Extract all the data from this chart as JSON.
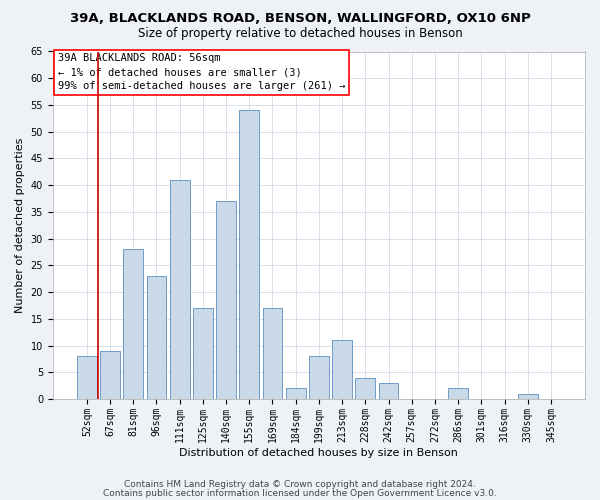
{
  "title1": "39A, BLACKLANDS ROAD, BENSON, WALLINGFORD, OX10 6NP",
  "title2": "Size of property relative to detached houses in Benson",
  "xlabel": "Distribution of detached houses by size in Benson",
  "ylabel": "Number of detached properties",
  "categories": [
    "52sqm",
    "67sqm",
    "81sqm",
    "96sqm",
    "111sqm",
    "125sqm",
    "140sqm",
    "155sqm",
    "169sqm",
    "184sqm",
    "199sqm",
    "213sqm",
    "228sqm",
    "242sqm",
    "257sqm",
    "272sqm",
    "286sqm",
    "301sqm",
    "316sqm",
    "330sqm",
    "345sqm"
  ],
  "values": [
    8,
    9,
    28,
    23,
    41,
    17,
    37,
    54,
    17,
    2,
    8,
    11,
    4,
    3,
    0,
    0,
    2,
    0,
    0,
    1,
    0
  ],
  "bar_color": "#c9d9e8",
  "bar_edge_color": "#5a8fc0",
  "ylim": [
    0,
    65
  ],
  "yticks": [
    0,
    5,
    10,
    15,
    20,
    25,
    30,
    35,
    40,
    45,
    50,
    55,
    60,
    65
  ],
  "annotation_line1": "39A BLACKLANDS ROAD: 56sqm",
  "annotation_line2": "← 1% of detached houses are smaller (3)",
  "annotation_line3": "99% of semi-detached houses are larger (261) →",
  "background_color": "#eef2f7",
  "plot_bg_color": "#ffffff",
  "footer1": "Contains HM Land Registry data © Crown copyright and database right 2024.",
  "footer2": "Contains public sector information licensed under the Open Government Licence v3.0.",
  "title1_fontsize": 9.5,
  "title2_fontsize": 8.5,
  "annotation_fontsize": 7.5,
  "xlabel_fontsize": 8,
  "ylabel_fontsize": 8,
  "footer_fontsize": 6.5,
  "tick_fontsize": 7,
  "grid_color": "#c8d4e0",
  "vline_color": "#cc0000",
  "vline_x_idx": 0.5
}
